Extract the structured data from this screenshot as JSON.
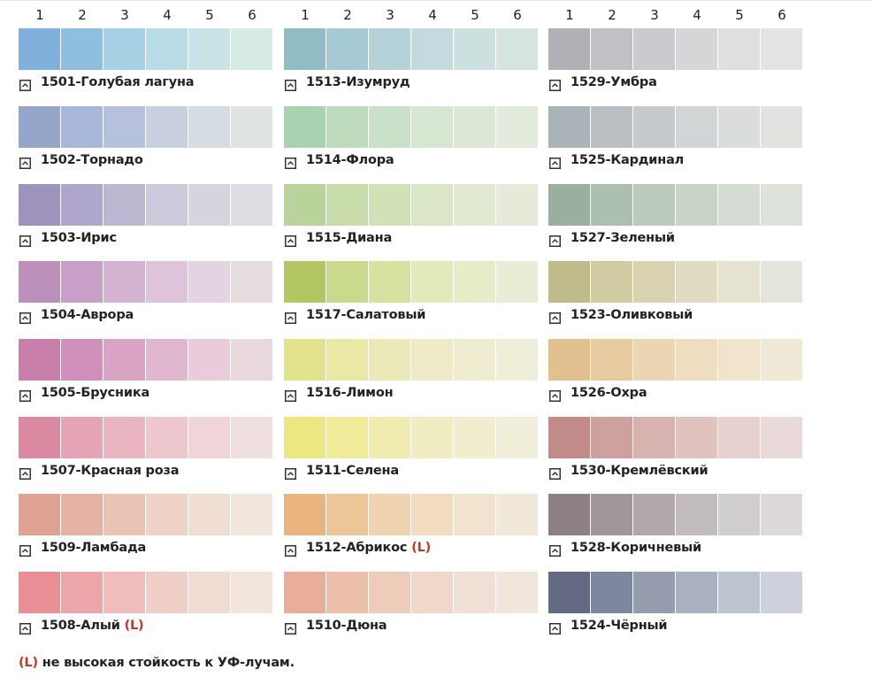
{
  "columns": [
    {
      "headers": [
        "1",
        "2",
        "3",
        "4",
        "5",
        "6"
      ],
      "palettes": [
        {
          "name": "1501-Голубая лагуна",
          "colors": [
            "#7fb1dc",
            "#8fbfe0",
            "#a6d0e3",
            "#b8dce6",
            "#c9e4e6",
            "#d6ebe6"
          ]
        },
        {
          "name": "1502-Торнадо",
          "colors": [
            "#95a6ca",
            "#a9b7da",
            "#b6c2dd",
            "#c8d0e0",
            "#d5dde2",
            "#dfe4e2"
          ]
        },
        {
          "name": "1503-Ирис",
          "colors": [
            "#9e93bd",
            "#aea7cb",
            "#bcb7d1",
            "#cbc9da",
            "#d6d5de",
            "#dddce2"
          ]
        },
        {
          "name": "1504-Аврора",
          "colors": [
            "#bd8fbb",
            "#c8a0c7",
            "#d3b3d0",
            "#dfc3da",
            "#e4d3e0",
            "#e4dcdf"
          ]
        },
        {
          "name": "1505-Брусника",
          "colors": [
            "#c87fac",
            "#d18fbb",
            "#d9a3c3",
            "#e1b7cf",
            "#e8ccdb",
            "#ead8df"
          ]
        },
        {
          "name": "1507-Красная роза",
          "colors": [
            "#dc8aa1",
            "#e5a5b7",
            "#e9b5c0",
            "#edc7cd",
            "#efd5d7",
            "#efdfde"
          ]
        },
        {
          "name": "1509-Ламбада",
          "colors": [
            "#dea192",
            "#e5b2a3",
            "#ebc3b5",
            "#efd2c6",
            "#f0ddd3",
            "#f1e7dc"
          ]
        },
        {
          "name": "1508-Алый",
          "mark": "(L)",
          "colors": [
            "#e98e94",
            "#eca6aa",
            "#efbdbb",
            "#f1cfc9",
            "#f1dcd3",
            "#f2e6dc"
          ]
        }
      ]
    },
    {
      "headers": [
        "1",
        "2",
        "3",
        "4",
        "5",
        "6"
      ],
      "palettes": [
        {
          "name": "1513-Изумруд",
          "colors": [
            "#91bcc6",
            "#a5c9d3",
            "#b5d2d9",
            "#c3dbdf",
            "#cce0df",
            "#d5e3e1"
          ]
        },
        {
          "name": "1514-Флора",
          "colors": [
            "#a8d2b0",
            "#bcdcbd",
            "#c9e1c8",
            "#d5e6d1",
            "#dce8d5",
            "#e3ebdc"
          ]
        },
        {
          "name": "1515-Диана",
          "colors": [
            "#bad39b",
            "#c8dcaa",
            "#d2e2b7",
            "#dbe6c6",
            "#e1e9d0",
            "#e6ebd9"
          ]
        },
        {
          "name": "1517-Салатовый",
          "colors": [
            "#b2c762",
            "#cada8c",
            "#d6e29f",
            "#e2eab9",
            "#e7ecc9",
            "#eaecd5"
          ]
        },
        {
          "name": "1516-Лимон",
          "colors": [
            "#e3e38e",
            "#e9e8a6",
            "#ece9b8",
            "#eeebc6",
            "#efecd0",
            "#efeed8"
          ]
        },
        {
          "name": "1511-Селена",
          "colors": [
            "#ece783",
            "#efeb9b",
            "#f0ecb0",
            "#f1edc2",
            "#f1eecf",
            "#f1eed9"
          ]
        },
        {
          "name": "1512-Абрикос",
          "mark": "(L)",
          "colors": [
            "#e9b47d",
            "#edc698",
            "#efd2ae",
            "#f1dcc0",
            "#f2e3cf",
            "#f2e8da"
          ]
        },
        {
          "name": "1510-Дюна",
          "colors": [
            "#e9ae9a",
            "#ecbfab",
            "#efccba",
            "#f0d7c9",
            "#f0dfd4",
            "#f1e5dc"
          ]
        }
      ]
    },
    {
      "headers": [
        "1",
        "2",
        "3",
        "4",
        "5",
        "6"
      ],
      "palettes": [
        {
          "name": "1529-Умбра",
          "colors": [
            "#b0b1b6",
            "#c0c1c5",
            "#cbcbcf",
            "#d6d6d8",
            "#dfdfe0",
            "#e5e4e3"
          ]
        },
        {
          "name": "1525-Кардинал",
          "colors": [
            "#a9b3b8",
            "#babfc3",
            "#c6cacd",
            "#d2d5d6",
            "#dbdddd",
            "#e2e3e1"
          ]
        },
        {
          "name": "1527-Зеленый",
          "colors": [
            "#9aaf9f",
            "#adbfb0",
            "#bcc9bd",
            "#c9d4c9",
            "#d4dcd3",
            "#dde3db"
          ]
        },
        {
          "name": "1523-Оливковый",
          "colors": [
            "#bfbb8b",
            "#d2cca5",
            "#d8d2b1",
            "#e0dcc3",
            "#e5e2d1",
            "#e3e5dd"
          ]
        },
        {
          "name": "1526-Охра",
          "colors": [
            "#e2c090",
            "#e7caa0",
            "#ebd5b2",
            "#eeddc1",
            "#f0e4cd",
            "#f1e9d8"
          ]
        },
        {
          "name": "1530-Кремлёвский",
          "colors": [
            "#c28a89",
            "#cfa19e",
            "#d7b2ae",
            "#e0c3bf",
            "#e6d1ce",
            "#ead9d9"
          ]
        },
        {
          "name": "1528-Коричневый",
          "colors": [
            "#8e7f82",
            "#a1979a",
            "#b1a8aa",
            "#c1bbbd",
            "#d0cdce",
            "#dcd9d8"
          ]
        },
        {
          "name": "1524-Чёрный",
          "colors": [
            "#636a82",
            "#7f879e",
            "#959cae",
            "#aab0c0",
            "#bec3d0",
            "#cdd1dc"
          ]
        }
      ]
    }
  ],
  "footnote": {
    "mark": "(L)",
    "text": "не высокая стойкость к УФ-лучам."
  }
}
